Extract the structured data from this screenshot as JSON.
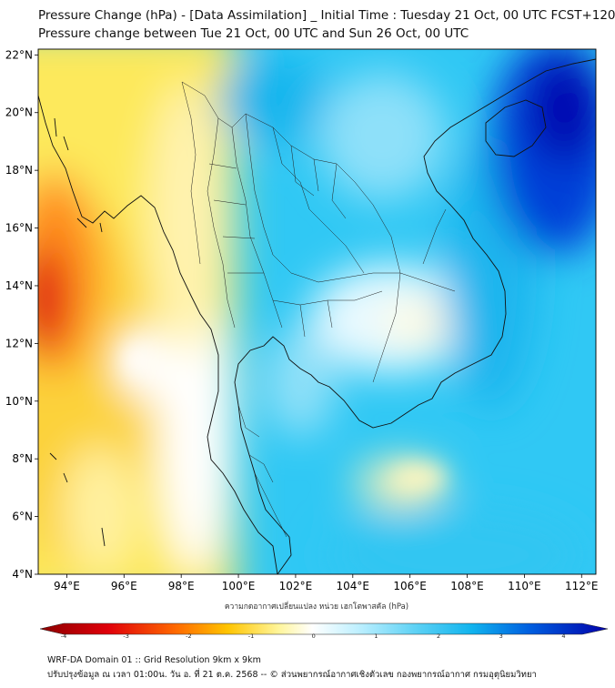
{
  "header": {
    "title_line1": "Pressure Change (hPa) - [Data Assimilation] _ Initial Time : Tuesday 21 Oct, 00 UTC FCST+120",
    "title_line2": "Pressure change between Tue 21 Oct, 00 UTC and Sun 26 Oct, 00 UTC"
  },
  "map": {
    "lat_labels": [
      "22°N",
      "20°N",
      "18°N",
      "16°N",
      "14°N",
      "12°N",
      "10°N",
      "8°N",
      "6°N",
      "4°N"
    ],
    "lat_values": [
      22,
      20,
      18,
      16,
      14,
      12,
      10,
      8,
      6,
      4
    ],
    "lon_labels": [
      "94°E",
      "96°E",
      "98°E",
      "100°E",
      "102°E",
      "104°E",
      "106°E",
      "108°E",
      "110°E",
      "112°E"
    ],
    "lon_values": [
      94,
      96,
      98,
      100,
      102,
      104,
      106,
      108,
      110,
      112
    ],
    "lon_range": [
      93,
      112.5
    ],
    "lat_range": [
      4,
      22.2
    ]
  },
  "colorbar": {
    "label": "ความกดอากาศเปลี่ยนแปลง หน่วย เฮกโตพาสคัล (hPa)",
    "ticks": [
      "-4",
      "-3",
      "-2",
      "-1",
      "0",
      "1",
      "2",
      "3",
      "4"
    ],
    "tick_values": [
      -4,
      -3,
      -2,
      -1,
      0,
      1,
      2,
      3,
      4
    ],
    "range": [
      -4,
      4.3
    ]
  },
  "footer": {
    "line1": "WRF-DA Domain 01 :: Grid Resolution 9km x 9km",
    "line2": "ปรับปรุงข้อมูล ณ เวลา 01:00น. วัน อ. ที่ 21 ต.ค. 2568 -- © ส่วนพยากรณ์อากาศเชิงตัวเลข กองพยากรณ์อากาศ กรมอุตุนิยมวิทยา"
  }
}
